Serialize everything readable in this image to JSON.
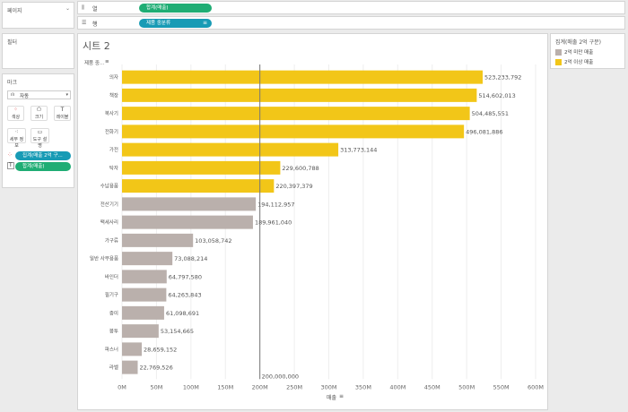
{
  "sidebar": {
    "pages_title": "페이지",
    "filters_title": "필터",
    "marks_title": "마크",
    "mark_type": "자동",
    "mark_type_icon": "bar-chart-icon",
    "buttons": [
      {
        "label": "색상",
        "icon": "color-dots-icon"
      },
      {
        "label": "크기",
        "icon": "size-icon"
      },
      {
        "label": "레이블",
        "icon": "label-icon"
      },
      {
        "label": "세부 정보",
        "icon": "detail-icon"
      },
      {
        "label": "도구 설명",
        "icon": "tooltip-icon"
      }
    ],
    "pills": [
      {
        "icon": "color-dots-icon",
        "label": "집계(매출 2억 구..."
      },
      {
        "icon": "label-icon",
        "label": "합계(매출)"
      }
    ]
  },
  "shelves": {
    "columns_label": "열",
    "columns_pill": "합계(매출)",
    "rows_label": "행",
    "rows_pill": "제품 중분류"
  },
  "legend": {
    "title": "집계(매출 2억 구분)",
    "items": [
      {
        "label": "2억 미만 매출",
        "color": "#bab0ac"
      },
      {
        "label": "2억 이상 매출",
        "color": "#f2c618"
      }
    ]
  },
  "chart_data": {
    "type": "bar",
    "orientation": "horizontal",
    "title": "시트 2",
    "row_header": "제품 중...",
    "xlabel": "매출",
    "categories": [
      "의자",
      "책장",
      "복사기",
      "전화기",
      "가전",
      "탁자",
      "수납용품",
      "전산기기",
      "팩세사리",
      "가구류",
      "일반 사무용품",
      "바인더",
      "필기구",
      "종이",
      "봉투",
      "파스너",
      "라벨"
    ],
    "values": [
      523233792,
      514602013,
      504485551,
      496081886,
      313773144,
      229600788,
      220397379,
      194112957,
      189961040,
      103058742,
      73088214,
      64797580,
      64263843,
      61098691,
      53154665,
      28659152,
      22769526
    ],
    "value_labels": [
      "523,233,792",
      "514,602,013",
      "504,485,551",
      "496,081,886",
      "313,773,144",
      "229,600,788",
      "220,397,379",
      "194,112,957",
      "189,961,040",
      "103,058,742",
      "73,088,214",
      "64,797,580",
      "64,263,843",
      "61,098,691",
      "53,154,665",
      "28,659,152",
      "22,769,526"
    ],
    "colors": {
      "above": "#f2c618",
      "below": "#bab0ac"
    },
    "threshold": 200000000,
    "threshold_label": "200,000,000",
    "xlim": [
      0,
      600000000
    ],
    "xticks": [
      0,
      50000000,
      100000000,
      150000000,
      200000000,
      250000000,
      300000000,
      350000000,
      400000000,
      450000000,
      500000000,
      550000000,
      600000000
    ],
    "xtick_labels": [
      "0M",
      "50M",
      "100M",
      "150M",
      "200M",
      "250M",
      "300M",
      "350M",
      "400M",
      "450M",
      "500M",
      "550M",
      "600M"
    ]
  }
}
